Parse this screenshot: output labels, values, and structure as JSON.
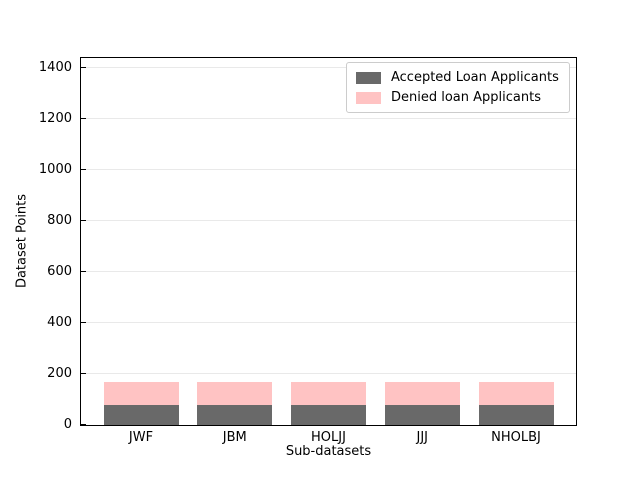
{
  "chart_data": {
    "type": "bar",
    "stacked": true,
    "title": "",
    "xlabel": "Sub-datasets",
    "ylabel": "Dataset Points",
    "categories": [
      "JWF",
      "JBM",
      "HOLJJ",
      "JJJ",
      "NHOLBJ"
    ],
    "series": [
      {
        "name": "Accepted Loan Applicants",
        "color": "#696969",
        "values": [
          80,
          80,
          80,
          80,
          80
        ]
      },
      {
        "name": "Denied loan Applicants",
        "color": "#ffc3c3",
        "values": [
          88,
          88,
          88,
          88,
          88
        ]
      }
    ],
    "ylim": [
      0,
      1438
    ],
    "yticks": [
      0,
      200,
      400,
      600,
      800,
      1000,
      1200,
      1400
    ],
    "xlim": [
      -0.64,
      4.64
    ],
    "bar_width": 0.8,
    "grid": "y",
    "gridline_color": "#e9e9e9",
    "legend_position": "upper right"
  }
}
